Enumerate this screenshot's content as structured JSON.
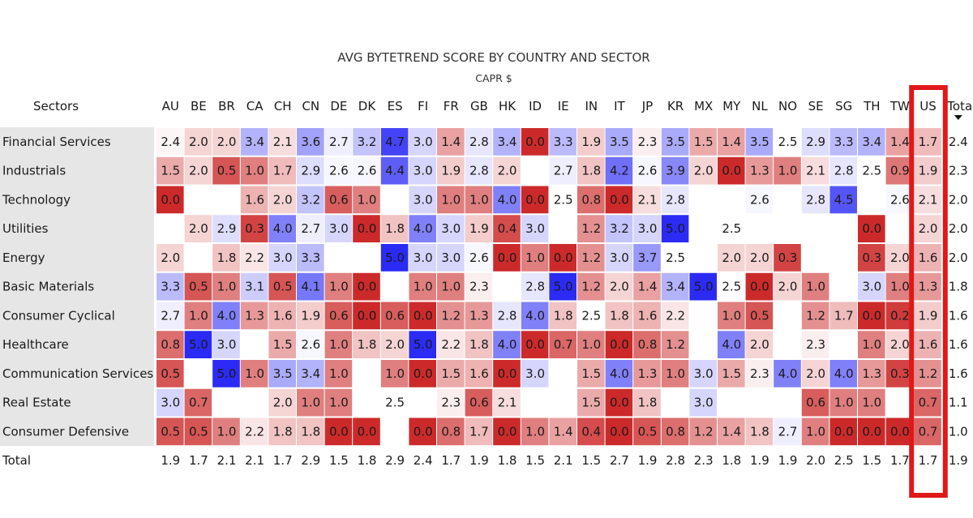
{
  "chart_data": {
    "type": "heatmap",
    "title": "AVG BYTETREND SCORE BY COUNTRY AND SECTOR",
    "subtitle": "CAPR $",
    "row_header": "Sectors",
    "total_label": "Total",
    "columns": [
      "AU",
      "BE",
      "BR",
      "CA",
      "CH",
      "CN",
      "DE",
      "DK",
      "ES",
      "FI",
      "FR",
      "GB",
      "HK",
      "ID",
      "IE",
      "IN",
      "IT",
      "JP",
      "KR",
      "MX",
      "MY",
      "NL",
      "NO",
      "SE",
      "SG",
      "TH",
      "TW",
      "US",
      "Total"
    ],
    "rows": [
      {
        "label": "Financial Services",
        "values": [
          "2.4",
          "2.0",
          "2.0",
          "3.4",
          "2.1",
          "3.6",
          "2.7",
          "3.2",
          "4.7",
          "3.0",
          "1.4",
          "2.8",
          "3.4",
          "0.0",
          "3.3",
          "1.9",
          "3.5",
          "2.3",
          "3.5",
          "1.5",
          "1.4",
          "3.5",
          "2.5",
          "2.9",
          "3.3",
          "3.4",
          "1.4",
          "1.7",
          "2.4"
        ]
      },
      {
        "label": "Industrials",
        "values": [
          "1.5",
          "2.0",
          "0.5",
          "1.0",
          "1.7",
          "2.9",
          "2.6",
          "2.6",
          "4.4",
          "3.0",
          "1.9",
          "2.8",
          "2.0",
          "",
          "2.7",
          "1.8",
          "4.2",
          "2.6",
          "3.9",
          "2.0",
          "0.0",
          "1.3",
          "1.0",
          "2.1",
          "2.8",
          "2.5",
          "0.9",
          "1.9",
          "2.3"
        ]
      },
      {
        "label": "Technology",
        "values": [
          "0.0",
          "",
          "",
          "1.6",
          "2.0",
          "3.2",
          "0.6",
          "1.0",
          "",
          "3.0",
          "1.0",
          "1.0",
          "4.0",
          "0.0",
          "2.5",
          "0.8",
          "0.0",
          "2.1",
          "2.8",
          "",
          "",
          "2.6",
          "",
          "2.8",
          "4.5",
          "",
          "2.6",
          "2.1",
          "2.0"
        ]
      },
      {
        "label": "Utilities",
        "values": [
          "",
          "2.0",
          "2.9",
          "0.3",
          "4.0",
          "2.7",
          "3.0",
          "0.0",
          "1.8",
          "4.0",
          "3.0",
          "1.9",
          "0.4",
          "3.0",
          "",
          "1.2",
          "3.2",
          "3.0",
          "5.0",
          "",
          "2.5",
          "",
          "",
          "",
          "",
          "0.0",
          "",
          "2.0",
          "2.0"
        ]
      },
      {
        "label": "Energy",
        "values": [
          "2.0",
          "",
          "1.8",
          "2.2",
          "3.0",
          "3.3",
          "",
          "",
          "5.0",
          "3.0",
          "3.0",
          "2.6",
          "0.0",
          "1.0",
          "0.0",
          "1.2",
          "3.0",
          "3.7",
          "2.5",
          "",
          "2.0",
          "2.0",
          "0.3",
          "",
          "",
          "0.3",
          "2.0",
          "1.6",
          "2.0"
        ]
      },
      {
        "label": "Basic Materials",
        "values": [
          "3.3",
          "0.5",
          "1.0",
          "3.1",
          "0.5",
          "4.1",
          "1.0",
          "0.0",
          "",
          "1.0",
          "1.0",
          "2.3",
          "",
          "2.8",
          "5.0",
          "1.2",
          "2.0",
          "1.4",
          "3.4",
          "5.0",
          "2.5",
          "0.0",
          "2.0",
          "1.0",
          "",
          "3.0",
          "1.0",
          "1.3",
          "1.8"
        ]
      },
      {
        "label": "Consumer Cyclical",
        "values": [
          "2.7",
          "1.0",
          "4.0",
          "1.3",
          "1.6",
          "1.9",
          "0.6",
          "0.0",
          "0.6",
          "0.0",
          "1.2",
          "1.3",
          "2.8",
          "4.0",
          "1.8",
          "2.5",
          "1.8",
          "1.6",
          "2.2",
          "",
          "1.0",
          "0.5",
          "",
          "1.2",
          "1.7",
          "0.0",
          "0.2",
          "1.9",
          "1.6"
        ]
      },
      {
        "label": "Healthcare",
        "values": [
          "0.8",
          "5.0",
          "3.0",
          "",
          "1.5",
          "2.6",
          "1.0",
          "1.8",
          "2.0",
          "5.0",
          "2.2",
          "1.8",
          "4.0",
          "0.0",
          "0.7",
          "1.0",
          "0.0",
          "0.8",
          "1.2",
          "",
          "4.0",
          "2.0",
          "",
          "2.3",
          "",
          "1.0",
          "2.0",
          "1.6",
          "1.6"
        ]
      },
      {
        "label": "Communication Services",
        "values": [
          "0.5",
          "",
          "5.0",
          "1.0",
          "3.5",
          "3.4",
          "1.0",
          "",
          "1.0",
          "0.0",
          "1.5",
          "1.6",
          "0.0",
          "3.0",
          "",
          "1.5",
          "4.0",
          "1.3",
          "1.0",
          "3.0",
          "1.5",
          "2.3",
          "4.0",
          "2.0",
          "4.0",
          "1.3",
          "0.3",
          "1.2",
          "1.6"
        ]
      },
      {
        "label": "Real Estate",
        "values": [
          "3.0",
          "0.7",
          "",
          "",
          "2.0",
          "1.0",
          "1.0",
          "",
          "2.5",
          "",
          "2.3",
          "0.6",
          "2.1",
          "",
          "",
          "1.5",
          "0.0",
          "1.8",
          "",
          "3.0",
          "",
          "",
          "",
          "0.6",
          "1.0",
          "1.0",
          "",
          "0.7",
          "1.1"
        ]
      },
      {
        "label": "Consumer Defensive",
        "values": [
          "0.5",
          "0.5",
          "1.0",
          "2.2",
          "1.8",
          "1.8",
          "0.0",
          "0.0",
          "",
          "0.0",
          "0.8",
          "1.7",
          "0.0",
          "1.0",
          "1.4",
          "0.4",
          "0.0",
          "0.5",
          "0.8",
          "1.2",
          "1.4",
          "1.8",
          "2.7",
          "1.0",
          "0.0",
          "0.0",
          "0.0",
          "0.7",
          "1.0"
        ]
      },
      {
        "label": "Total",
        "values": [
          "1.9",
          "1.7",
          "2.1",
          "2.1",
          "1.7",
          "2.9",
          "1.5",
          "1.8",
          "2.9",
          "2.4",
          "1.7",
          "1.9",
          "1.8",
          "1.5",
          "2.1",
          "1.5",
          "2.7",
          "1.9",
          "2.8",
          "2.3",
          "1.8",
          "1.9",
          "1.9",
          "2.0",
          "2.5",
          "1.5",
          "1.7",
          "1.7",
          "1.9"
        ]
      }
    ],
    "color_scale": {
      "min": 0.0,
      "mid": 2.5,
      "max": 5.0,
      "low_color": "#cc2a2a",
      "mid_color": "#ffffff",
      "high_color": "#2b2bf5"
    },
    "highlighted_column": "US",
    "highlight_color": "#e01818",
    "sort_indicator_column": "Total"
  }
}
